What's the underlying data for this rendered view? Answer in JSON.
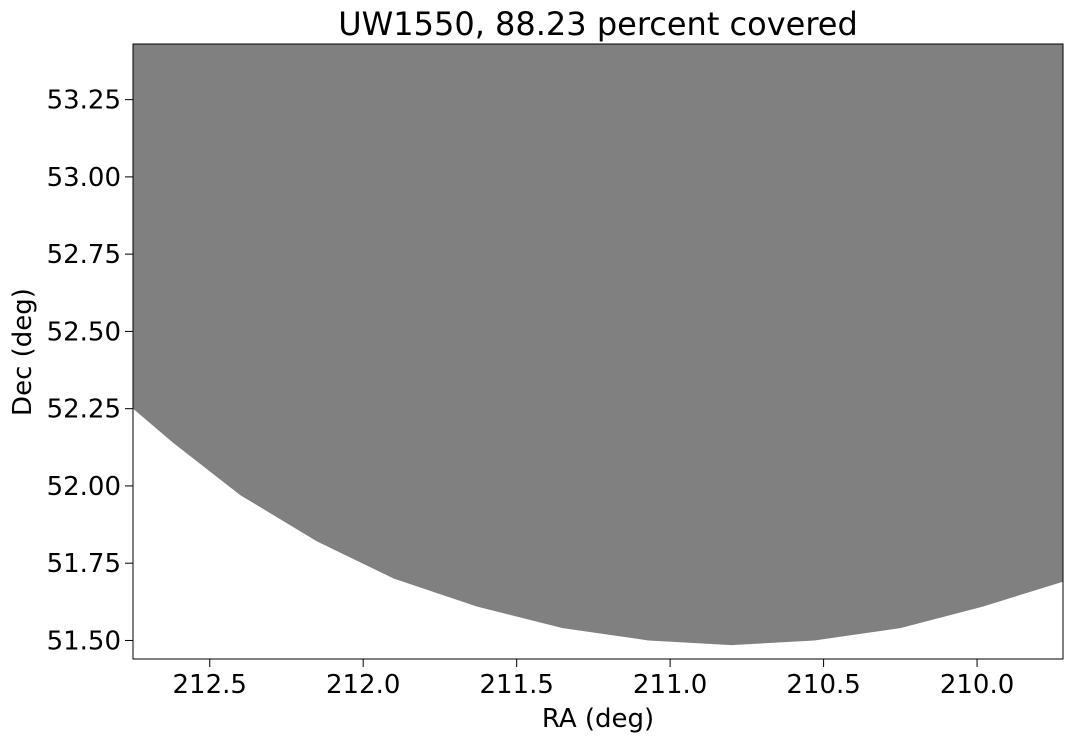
{
  "chart_data": {
    "type": "area",
    "title": "UW1550, 88.23 percent covered",
    "xlabel": "RA (deg)",
    "ylabel": "Dec (deg)",
    "xlim": [
      212.75,
      209.72
    ],
    "ylim": [
      51.44,
      53.43
    ],
    "x_inverted": true,
    "grid": false,
    "xticks": [
      212.5,
      212.0,
      211.5,
      211.0,
      210.5,
      210.0
    ],
    "xtick_labels": [
      "212.5",
      "212.0",
      "211.5",
      "211.0",
      "210.5",
      "210.0"
    ],
    "yticks": [
      51.5,
      51.75,
      52.0,
      52.25,
      52.5,
      52.75,
      53.0,
      53.25
    ],
    "ytick_labels": [
      "51.50",
      "51.75",
      "52.00",
      "52.25",
      "52.50",
      "52.75",
      "53.00",
      "53.25"
    ],
    "series": [
      {
        "color": "#808080",
        "lower_boundary": {
          "x": [
            212.75,
            212.62,
            212.4,
            212.15,
            211.9,
            211.63,
            211.35,
            211.07,
            210.8,
            210.53,
            210.25,
            209.98,
            209.72
          ],
          "y": [
            52.25,
            52.14,
            51.97,
            51.82,
            51.7,
            51.61,
            51.54,
            51.5,
            51.485,
            51.5,
            51.54,
            51.61,
            51.69
          ]
        },
        "fill_to": 53.43
      }
    ]
  }
}
